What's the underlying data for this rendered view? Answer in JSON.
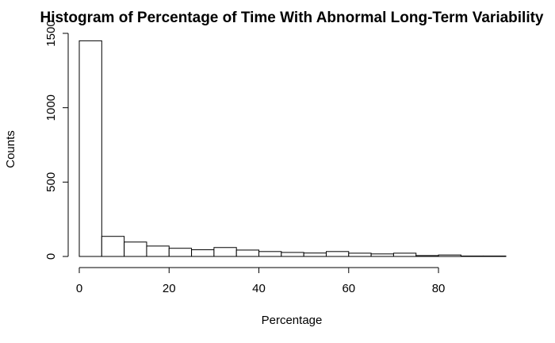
{
  "chart_data": {
    "type": "bar",
    "title": "Histogram of Percentage of Time With Abnormal Long-Term Variability",
    "xlabel": "Percentage",
    "ylabel": "Counts",
    "bin_width": 5,
    "xlim": [
      0,
      95
    ],
    "ylim": [
      0,
      1500
    ],
    "x_ticks": [
      0,
      20,
      40,
      60,
      80
    ],
    "y_ticks": [
      0,
      500,
      1000,
      1500
    ],
    "bins": [
      {
        "start": 0,
        "end": 5,
        "count": 1450
      },
      {
        "start": 5,
        "end": 10,
        "count": 135
      },
      {
        "start": 10,
        "end": 15,
        "count": 97
      },
      {
        "start": 15,
        "end": 20,
        "count": 70
      },
      {
        "start": 20,
        "end": 25,
        "count": 55
      },
      {
        "start": 25,
        "end": 30,
        "count": 45
      },
      {
        "start": 30,
        "end": 35,
        "count": 60
      },
      {
        "start": 35,
        "end": 40,
        "count": 43
      },
      {
        "start": 40,
        "end": 45,
        "count": 33
      },
      {
        "start": 45,
        "end": 50,
        "count": 27
      },
      {
        "start": 50,
        "end": 55,
        "count": 23
      },
      {
        "start": 55,
        "end": 60,
        "count": 33
      },
      {
        "start": 60,
        "end": 65,
        "count": 22
      },
      {
        "start": 65,
        "end": 70,
        "count": 17
      },
      {
        "start": 70,
        "end": 75,
        "count": 22
      },
      {
        "start": 75,
        "end": 80,
        "count": 6
      },
      {
        "start": 80,
        "end": 85,
        "count": 10
      },
      {
        "start": 85,
        "end": 90,
        "count": 3
      },
      {
        "start": 90,
        "end": 95,
        "count": 3
      }
    ]
  }
}
